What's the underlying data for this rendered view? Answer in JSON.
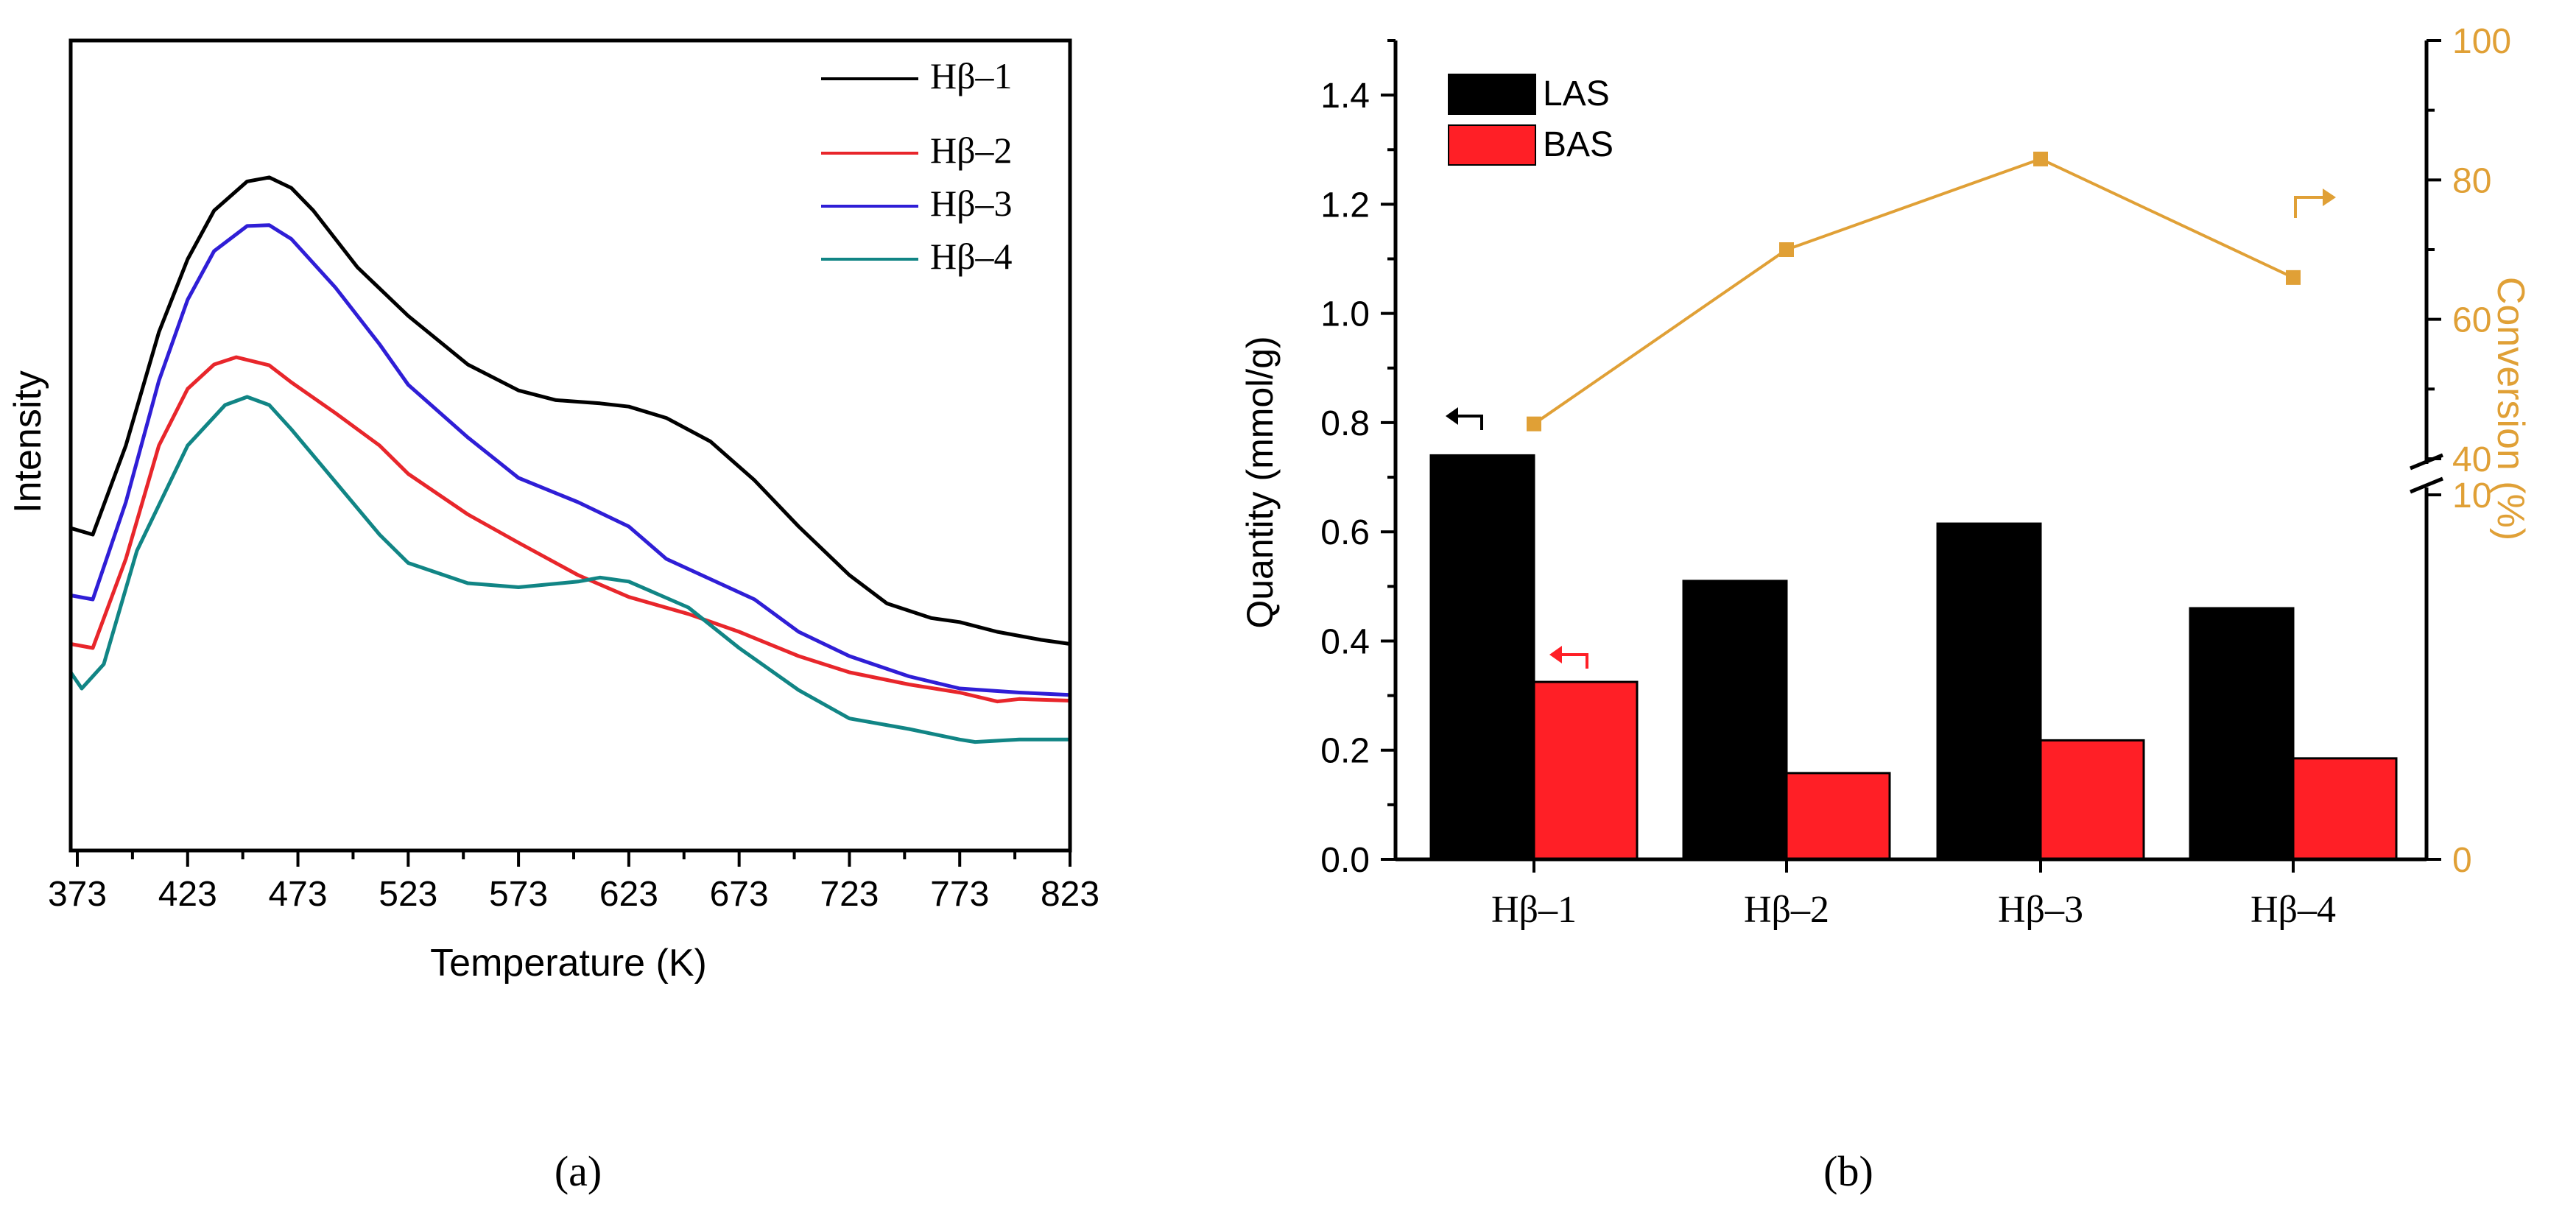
{
  "colors": {
    "h1": "#000000",
    "h2": "#e8262b",
    "h3": "#2f1ed6",
    "h4": "#118585",
    "las": "#000000",
    "bas": "#ff1f26",
    "conversion": "#e0a036"
  },
  "panel_labels": {
    "a": "(a)",
    "b": "(b)"
  },
  "chart_data": [
    {
      "id": "a",
      "type": "line",
      "title": "",
      "xlabel": "Temperature (K)",
      "ylabel": "Intensity",
      "xlim": [
        370,
        823
      ],
      "ylim": [
        0,
        1
      ],
      "x_ticks": [
        373,
        423,
        473,
        523,
        573,
        623,
        673,
        723,
        773,
        823
      ],
      "x_tick_labels": [
        "373",
        "423",
        "473",
        "523",
        "573",
        "623",
        "673",
        "723",
        "773",
        "823"
      ],
      "legend_position": "top-right",
      "grid": false,
      "series": [
        {
          "name": "Hβ–1",
          "color_key": "h1",
          "x": [
            370,
            380,
            395,
            410,
            423,
            435,
            450,
            460,
            470,
            480,
            500,
            523,
            550,
            573,
            590,
            610,
            623,
            640,
            660,
            680,
            700,
            723,
            740,
            760,
            773,
            790,
            810,
            823
          ],
          "y": [
            0.398,
            0.39,
            0.5,
            0.64,
            0.73,
            0.79,
            0.826,
            0.831,
            0.818,
            0.79,
            0.72,
            0.66,
            0.6,
            0.568,
            0.556,
            0.552,
            0.548,
            0.534,
            0.505,
            0.457,
            0.4,
            0.34,
            0.305,
            0.287,
            0.282,
            0.27,
            0.26,
            0.255
          ]
        },
        {
          "name": "Hβ–2",
          "color_key": "h2",
          "x": [
            370,
            380,
            395,
            410,
            423,
            435,
            445,
            460,
            470,
            490,
            510,
            523,
            550,
            573,
            600,
            623,
            650,
            673,
            700,
            723,
            750,
            773,
            790,
            800,
            823
          ],
          "y": [
            0.255,
            0.25,
            0.36,
            0.5,
            0.57,
            0.6,
            0.609,
            0.599,
            0.578,
            0.54,
            0.5,
            0.465,
            0.415,
            0.38,
            0.34,
            0.313,
            0.292,
            0.27,
            0.24,
            0.22,
            0.205,
            0.195,
            0.184,
            0.187,
            0.185
          ]
        },
        {
          "name": "Hβ–3",
          "color_key": "h3",
          "x": [
            370,
            380,
            395,
            410,
            423,
            435,
            450,
            460,
            470,
            490,
            510,
            523,
            550,
            573,
            600,
            623,
            640,
            660,
            680,
            700,
            723,
            750,
            773,
            800,
            823
          ],
          "y": [
            0.315,
            0.31,
            0.43,
            0.58,
            0.68,
            0.74,
            0.771,
            0.772,
            0.755,
            0.695,
            0.625,
            0.575,
            0.51,
            0.46,
            0.43,
            0.4,
            0.36,
            0.335,
            0.31,
            0.27,
            0.24,
            0.215,
            0.2,
            0.195,
            0.192
          ]
        },
        {
          "name": "Hβ–4",
          "color_key": "h4",
          "x": [
            370,
            375,
            385,
            400,
            423,
            440,
            450,
            460,
            470,
            490,
            510,
            523,
            550,
            573,
            600,
            610,
            623,
            650,
            673,
            700,
            723,
            750,
            773,
            780,
            800,
            823
          ],
          "y": [
            0.22,
            0.2,
            0.23,
            0.37,
            0.5,
            0.55,
            0.56,
            0.55,
            0.52,
            0.455,
            0.39,
            0.355,
            0.33,
            0.325,
            0.332,
            0.337,
            0.332,
            0.3,
            0.25,
            0.198,
            0.163,
            0.15,
            0.137,
            0.134,
            0.137,
            0.137
          ]
        }
      ]
    },
    {
      "id": "b",
      "type": "bar",
      "title": "",
      "xlabel": "",
      "ylabel": "Quantity (mmol/g)",
      "ylim": [
        0,
        1.5
      ],
      "y_ticks": [
        0.0,
        0.2,
        0.4,
        0.6,
        0.8,
        1.0,
        1.2,
        1.4
      ],
      "y_tick_labels": [
        "0.0",
        "0.2",
        "0.4",
        "0.6",
        "0.8",
        "1.0",
        "1.2",
        "1.4"
      ],
      "categories": [
        "Hβ–1",
        "Hβ–2",
        "Hβ–3",
        "Hβ–4"
      ],
      "legend_position": "top-left",
      "grid": false,
      "series": [
        {
          "name": "LAS",
          "color_key": "las",
          "axis": "left",
          "values": [
            0.74,
            0.51,
            0.615,
            0.46
          ]
        },
        {
          "name": "BAS",
          "color_key": "bas",
          "axis": "left",
          "values": [
            0.325,
            0.158,
            0.218,
            0.185
          ]
        },
        {
          "name": "Conversion",
          "color_key": "conversion",
          "type": "line",
          "axis": "right",
          "values": [
            45,
            70,
            83,
            66
          ]
        }
      ],
      "right_axis": {
        "label": "Conversion (%)",
        "ticks": [
          0,
          10,
          40,
          60,
          80,
          100
        ],
        "tick_labels": [
          "0",
          "10",
          "40",
          "60",
          "80",
          "100"
        ],
        "broken": true,
        "break_between": [
          10,
          40
        ]
      },
      "axis_arrows": {
        "las": "←",
        "bas": "←",
        "conversion": "→"
      }
    }
  ]
}
